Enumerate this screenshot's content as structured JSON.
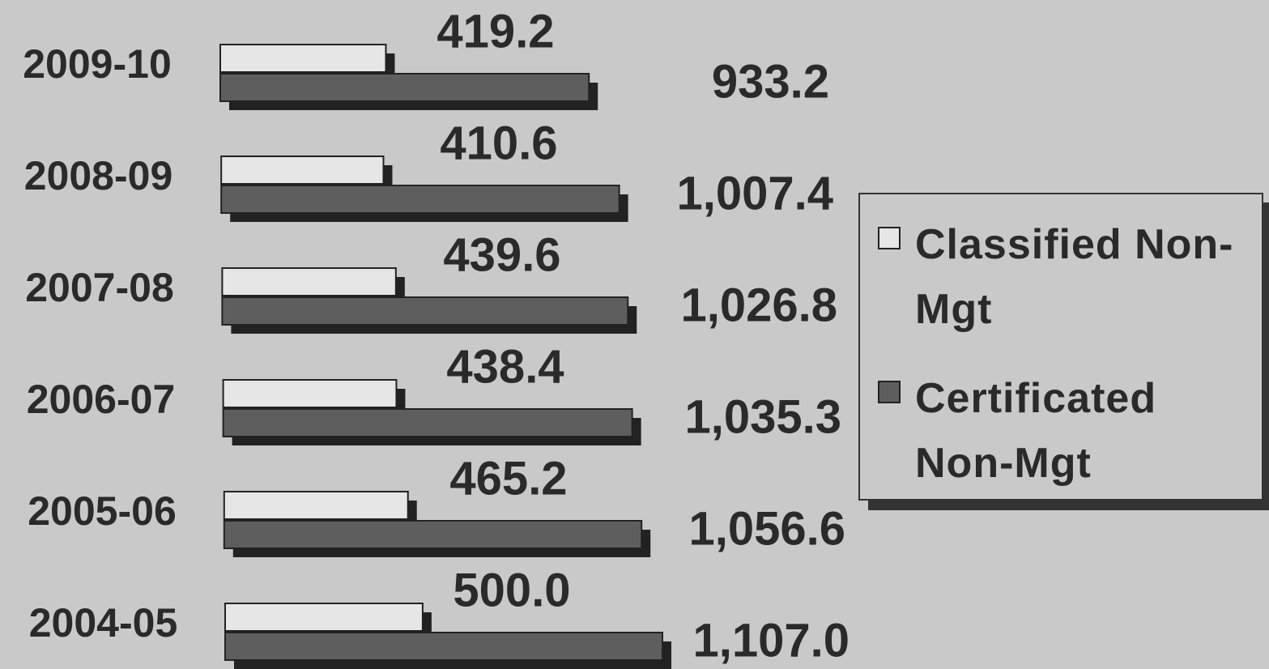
{
  "chart_data": {
    "type": "bar",
    "orientation": "horizontal",
    "categories": [
      "2009-10",
      "2008-09",
      "2007-08",
      "2006-07",
      "2005-06",
      "2004-05"
    ],
    "series": [
      {
        "name": "Classified Non-Mgt",
        "color": "#e6e6e6",
        "values": [
          419.2,
          410.6,
          439.6,
          438.4,
          465.2,
          500.0
        ],
        "value_labels": [
          "419.2",
          "410.6",
          "439.6",
          "438.4",
          "465.2",
          "500.0"
        ]
      },
      {
        "name": "Certificated Non-Mgt",
        "color": "#5e5e5e",
        "values": [
          933.2,
          1007.4,
          1026.8,
          1035.3,
          1056.6,
          1107.0
        ],
        "value_labels": [
          "933.2",
          "1,007.4",
          "1,026.8",
          "1,035.3",
          "1,056.6",
          "1,107.0"
        ]
      }
    ],
    "legend": "right"
  }
}
